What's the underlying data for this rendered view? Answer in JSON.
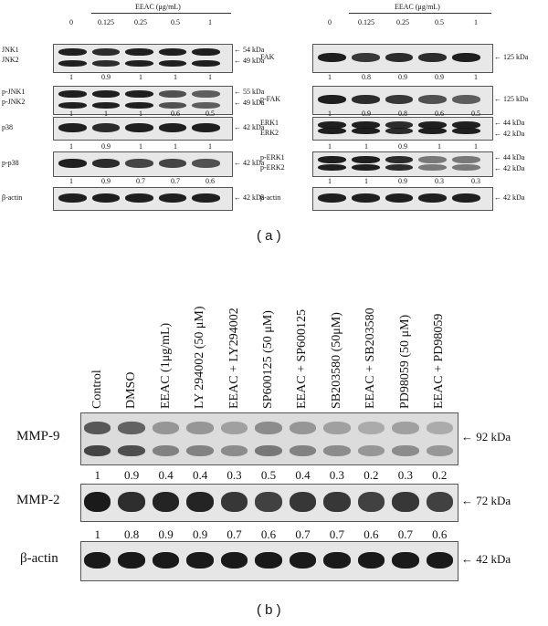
{
  "panel_a": {
    "label": "( a )",
    "left": {
      "header": "EEAC (μg/mL)",
      "lanes": [
        "0",
        "0.125",
        "0.25",
        "0.5",
        "1"
      ],
      "blots": [
        {
          "rows": [
            "JNK1",
            "JNK2"
          ],
          "markers": [
            "← 54 kDa",
            "← 49 kDa"
          ],
          "values": [
            "1",
            "0.9",
            "1",
            "1",
            "1"
          ]
        },
        {
          "rows": [
            "p-JNK1",
            "p-JNK2"
          ],
          "markers": [
            "← 55 kDa",
            "← 49 kDa"
          ],
          "values": [
            "1",
            "1",
            "1",
            "0.6",
            "0.5"
          ]
        },
        {
          "rows": [
            "p38"
          ],
          "markers": [
            "← 42 kDa"
          ],
          "values": [
            "1",
            "0.9",
            "1",
            "1",
            "1"
          ]
        },
        {
          "rows": [
            "p-p38"
          ],
          "markers": [
            "← 42 kDa"
          ],
          "values": [
            "1",
            "0.9",
            "0.7",
            "0.7",
            "0.6"
          ]
        },
        {
          "rows": [
            "β-actin"
          ],
          "markers": [
            "← 42 kDa"
          ],
          "values": []
        }
      ]
    },
    "right": {
      "header": "EEAC (μg/mL)",
      "lanes": [
        "0",
        "0.125",
        "0.25",
        "0.5",
        "1"
      ],
      "blots": [
        {
          "rows": [
            "FAK"
          ],
          "markers": [
            "← 125 kDa"
          ],
          "values": [
            "1",
            "0.8",
            "0.9",
            "0.9",
            "1"
          ]
        },
        {
          "rows": [
            "p-FAK"
          ],
          "markers": [
            "← 125 kDa"
          ],
          "values": [
            "1",
            "0.9",
            "0.8",
            "0.6",
            "0.5"
          ]
        },
        {
          "rows": [
            "ERK1",
            "ERK2"
          ],
          "markers": [
            "← 44 kDa",
            "← 42 kDa"
          ],
          "values": [
            "1",
            "1",
            "0.9",
            "1",
            "1"
          ]
        },
        {
          "rows": [
            "p-ERK1",
            "p-ERK2"
          ],
          "markers": [
            "← 44 kDa",
            "← 42 kDa"
          ],
          "values": [
            "1",
            "1",
            "0.9",
            "0.3",
            "0.3"
          ]
        },
        {
          "rows": [
            "β-actin"
          ],
          "markers": [
            "← 42 kDa"
          ],
          "values": []
        }
      ]
    }
  },
  "panel_b": {
    "label": "( b )",
    "lanes": [
      "Control",
      "DMSO",
      "EEAC (1μg/mL)",
      "LY 294002 (50 μM)",
      "EEAC + LY294002",
      "SP600125 (50 μM)",
      "EEAC + SP600125",
      "SB203580 (50μM)",
      "EEAC + SB203580",
      "PD98059 (50 μM)",
      "EEAC + PD98059"
    ],
    "blots": [
      {
        "row": "MMP-9",
        "marker": "← 92 kDa",
        "values": [
          "1",
          "0.9",
          "0.4",
          "0.4",
          "0.3",
          "0.5",
          "0.4",
          "0.3",
          "0.2",
          "0.3",
          "0.2"
        ]
      },
      {
        "row": "MMP-2",
        "marker": "← 72 kDa",
        "values": [
          "1",
          "0.8",
          "0.9",
          "0.9",
          "0.7",
          "0.6",
          "0.7",
          "0.7",
          "0.6",
          "0.7",
          "0.6"
        ]
      },
      {
        "row": "β-actin",
        "marker": "← 42 kDa",
        "values": []
      }
    ]
  }
}
